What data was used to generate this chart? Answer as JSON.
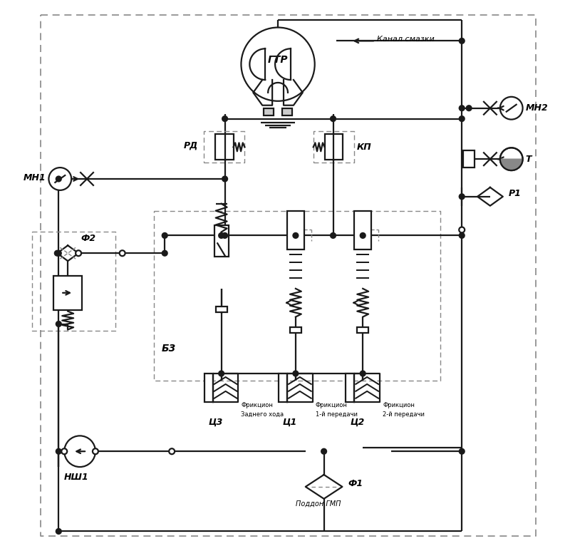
{
  "bg_color": "#ffffff",
  "line_color": "#1a1a1a",
  "dash_color": "#888888",
  "lw": 1.6,
  "labels": {
    "GTR": "ГТР",
    "RD": "РД",
    "KP": "КП",
    "MH1": "МН1",
    "MH2": "МН2",
    "T": "Т",
    "R1": "Р1",
    "F2": "Ф2",
    "F1": "Ф1",
    "B3": "Б3",
    "NSH1": "НШ1",
    "Ts3": "Ц3",
    "Ts1": "Ц1",
    "Ts2": "Ц2",
    "canal": "Канал смазки",
    "poddon": "Поддон ГМП",
    "fric3a": "Фрикцион",
    "fric3b": "Заднего хода",
    "fric1a": "Фрикцион",
    "fric1b": "1-й передачи",
    "fric2a": "Фрикцион",
    "fric2b": "2-й передачи"
  }
}
